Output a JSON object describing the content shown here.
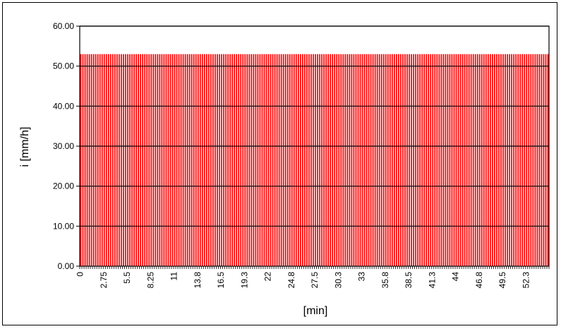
{
  "chart_data": {
    "type": "bar",
    "xlabel": "[min]",
    "ylabel": "i [mm/h]",
    "ylim": [
      0,
      60
    ],
    "ytick_labels": [
      "0.00",
      "10.00",
      "20.00",
      "30.00",
      "40.00",
      "50.00",
      "60.00"
    ],
    "x_step_min": 0.25,
    "x_start_min": 0,
    "bar_count": 220,
    "constant_value": 53.0,
    "xtick_labels": [
      "0",
      "2.75",
      "5.5",
      "8.25",
      "11",
      "13.8",
      "16.5",
      "19.3",
      "22",
      "24.8",
      "27.5",
      "30.3",
      "33",
      "35.8",
      "38.5",
      "41.3",
      "44",
      "46.8",
      "49.5",
      "52.3"
    ],
    "grid": true,
    "legend": "none",
    "bar_color": "#ff0000",
    "gap_color": "#ffffff"
  }
}
